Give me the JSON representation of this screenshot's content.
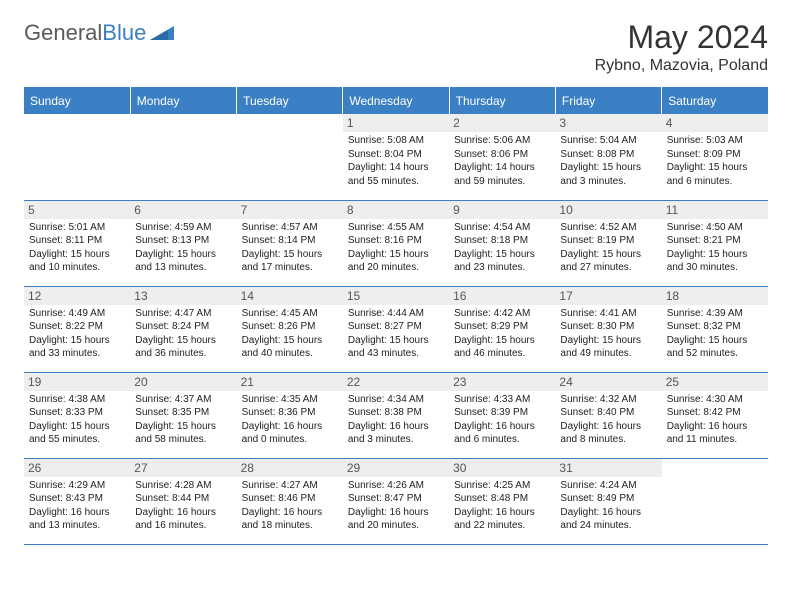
{
  "brand": {
    "name_general": "General",
    "name_blue": "Blue"
  },
  "title": "May 2024",
  "location": "Rybno, Mazovia, Poland",
  "weekdays": [
    "Sunday",
    "Monday",
    "Tuesday",
    "Wednesday",
    "Thursday",
    "Friday",
    "Saturday"
  ],
  "colors": {
    "header_bg": "#3b7fc4",
    "header_text": "#ffffff",
    "rule": "#3b7fc4",
    "daynum_bg": "#eeeeee",
    "daynum_text": "#555555",
    "body_text": "#222222"
  },
  "typography": {
    "title_fontsize": 32,
    "location_fontsize": 16,
    "weekday_fontsize": 12,
    "daynum_fontsize": 12,
    "info_fontsize": 10
  },
  "grid": {
    "rows": 5,
    "cols": 7,
    "first_weekday_index": 3,
    "days_in_month": 31
  },
  "days": {
    "1": {
      "sunrise": "5:08 AM",
      "sunset": "8:04 PM",
      "daylight": "14 hours and 55 minutes."
    },
    "2": {
      "sunrise": "5:06 AM",
      "sunset": "8:06 PM",
      "daylight": "14 hours and 59 minutes."
    },
    "3": {
      "sunrise": "5:04 AM",
      "sunset": "8:08 PM",
      "daylight": "15 hours and 3 minutes."
    },
    "4": {
      "sunrise": "5:03 AM",
      "sunset": "8:09 PM",
      "daylight": "15 hours and 6 minutes."
    },
    "5": {
      "sunrise": "5:01 AM",
      "sunset": "8:11 PM",
      "daylight": "15 hours and 10 minutes."
    },
    "6": {
      "sunrise": "4:59 AM",
      "sunset": "8:13 PM",
      "daylight": "15 hours and 13 minutes."
    },
    "7": {
      "sunrise": "4:57 AM",
      "sunset": "8:14 PM",
      "daylight": "15 hours and 17 minutes."
    },
    "8": {
      "sunrise": "4:55 AM",
      "sunset": "8:16 PM",
      "daylight": "15 hours and 20 minutes."
    },
    "9": {
      "sunrise": "4:54 AM",
      "sunset": "8:18 PM",
      "daylight": "15 hours and 23 minutes."
    },
    "10": {
      "sunrise": "4:52 AM",
      "sunset": "8:19 PM",
      "daylight": "15 hours and 27 minutes."
    },
    "11": {
      "sunrise": "4:50 AM",
      "sunset": "8:21 PM",
      "daylight": "15 hours and 30 minutes."
    },
    "12": {
      "sunrise": "4:49 AM",
      "sunset": "8:22 PM",
      "daylight": "15 hours and 33 minutes."
    },
    "13": {
      "sunrise": "4:47 AM",
      "sunset": "8:24 PM",
      "daylight": "15 hours and 36 minutes."
    },
    "14": {
      "sunrise": "4:45 AM",
      "sunset": "8:26 PM",
      "daylight": "15 hours and 40 minutes."
    },
    "15": {
      "sunrise": "4:44 AM",
      "sunset": "8:27 PM",
      "daylight": "15 hours and 43 minutes."
    },
    "16": {
      "sunrise": "4:42 AM",
      "sunset": "8:29 PM",
      "daylight": "15 hours and 46 minutes."
    },
    "17": {
      "sunrise": "4:41 AM",
      "sunset": "8:30 PM",
      "daylight": "15 hours and 49 minutes."
    },
    "18": {
      "sunrise": "4:39 AM",
      "sunset": "8:32 PM",
      "daylight": "15 hours and 52 minutes."
    },
    "19": {
      "sunrise": "4:38 AM",
      "sunset": "8:33 PM",
      "daylight": "15 hours and 55 minutes."
    },
    "20": {
      "sunrise": "4:37 AM",
      "sunset": "8:35 PM",
      "daylight": "15 hours and 58 minutes."
    },
    "21": {
      "sunrise": "4:35 AM",
      "sunset": "8:36 PM",
      "daylight": "16 hours and 0 minutes."
    },
    "22": {
      "sunrise": "4:34 AM",
      "sunset": "8:38 PM",
      "daylight": "16 hours and 3 minutes."
    },
    "23": {
      "sunrise": "4:33 AM",
      "sunset": "8:39 PM",
      "daylight": "16 hours and 6 minutes."
    },
    "24": {
      "sunrise": "4:32 AM",
      "sunset": "8:40 PM",
      "daylight": "16 hours and 8 minutes."
    },
    "25": {
      "sunrise": "4:30 AM",
      "sunset": "8:42 PM",
      "daylight": "16 hours and 11 minutes."
    },
    "26": {
      "sunrise": "4:29 AM",
      "sunset": "8:43 PM",
      "daylight": "16 hours and 13 minutes."
    },
    "27": {
      "sunrise": "4:28 AM",
      "sunset": "8:44 PM",
      "daylight": "16 hours and 16 minutes."
    },
    "28": {
      "sunrise": "4:27 AM",
      "sunset": "8:46 PM",
      "daylight": "16 hours and 18 minutes."
    },
    "29": {
      "sunrise": "4:26 AM",
      "sunset": "8:47 PM",
      "daylight": "16 hours and 20 minutes."
    },
    "30": {
      "sunrise": "4:25 AM",
      "sunset": "8:48 PM",
      "daylight": "16 hours and 22 minutes."
    },
    "31": {
      "sunrise": "4:24 AM",
      "sunset": "8:49 PM",
      "daylight": "16 hours and 24 minutes."
    }
  },
  "labels": {
    "sunrise": "Sunrise:",
    "sunset": "Sunset:",
    "daylight": "Daylight:"
  }
}
